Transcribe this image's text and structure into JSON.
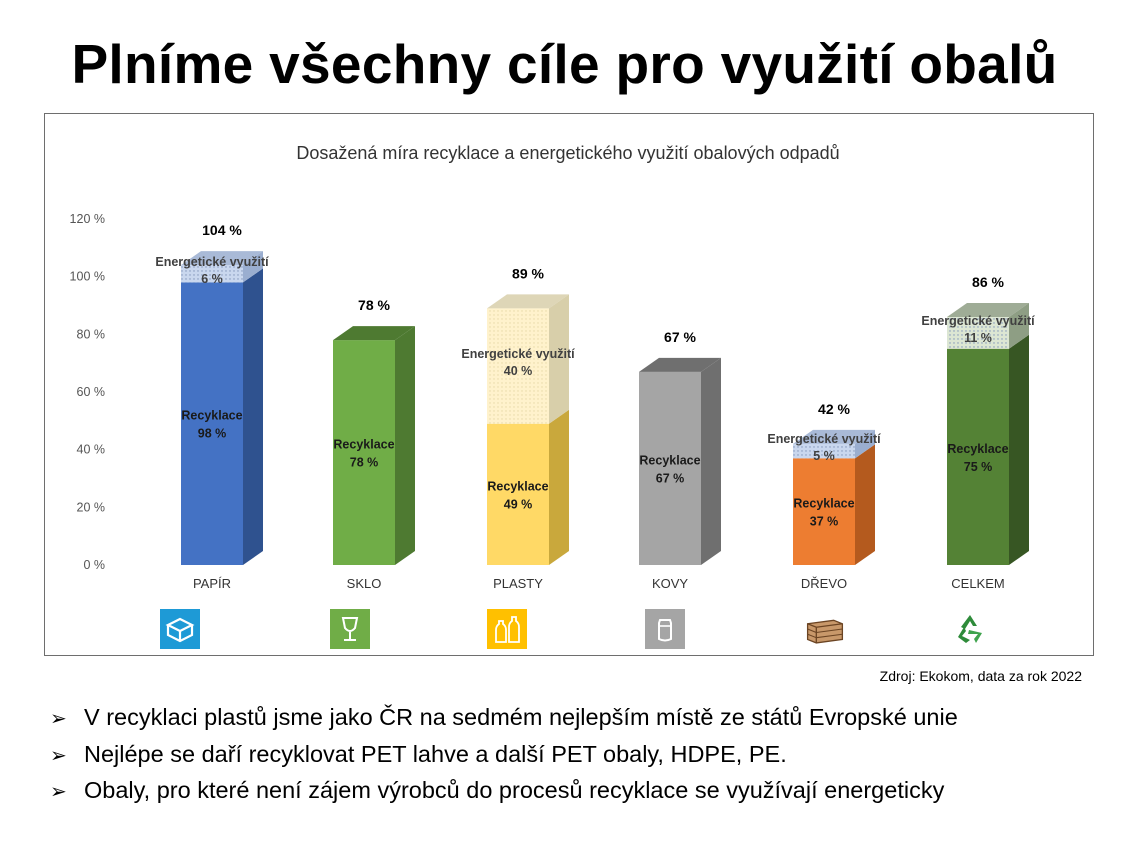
{
  "slide": {
    "title": "Plníme všechny cíle pro využití obalů",
    "source": "Zdroj: Ekokom, data za rok 2022",
    "bullet_marker": "➢",
    "bullets": [
      "V recyklaci plastů jsme jako ČR na sedmém nejlepším místě ze států Evropské unie",
      "Nejlépe se daří recyklovat PET lahve a další PET obaly, HDPE, PE.",
      "Obaly, pro které není zájem výrobců do procesů recyklace se využívají energeticky"
    ]
  },
  "chart_data": {
    "type": "bar",
    "stacked": true,
    "title": "Dosažená míra recyklace a energetického využití obalových odpadů",
    "xlabel": "",
    "ylabel": "",
    "ylim": [
      0,
      120
    ],
    "yticks": [
      "0 %",
      "20 %",
      "40 %",
      "60 %",
      "80 %",
      "100 %",
      "120 %"
    ],
    "ytick_values": [
      0,
      20,
      40,
      60,
      80,
      100,
      120
    ],
    "categories": [
      "PAPÍR",
      "SKLO",
      "PLASTY",
      "KOVY",
      "DŘEVO",
      "CELKEM"
    ],
    "totals": [
      "104 %",
      "78 %",
      "89 %",
      "67 %",
      "42 %",
      "86 %"
    ],
    "series": [
      {
        "name": "Recyklace",
        "values": [
          98,
          78,
          49,
          67,
          37,
          75
        ],
        "labels": [
          "98 %",
          "78 %",
          "49 %",
          "67 %",
          "37 %",
          "75 %"
        ]
      },
      {
        "name": "Energetické využití",
        "values": [
          6,
          0,
          40,
          0,
          5,
          11
        ],
        "labels": [
          "6 %",
          "",
          "40 %",
          "",
          "5 %",
          "11 %"
        ]
      }
    ],
    "colors": {
      "recyklace": [
        "#4472C4",
        "#70AD47",
        "#FFD966",
        "#A5A5A5",
        "#ED7D31",
        "#548235"
      ],
      "recyklace_side": [
        "#2F528F",
        "#4E7A31",
        "#C9A83C",
        "#6F6F6F",
        "#B45A1E",
        "#375623"
      ],
      "energeticke": [
        "#C9D7EE",
        "#FFFFFF",
        "#FFF2CC",
        "#FFFFFF",
        "#C9D7EE",
        "#DCE6D3"
      ],
      "energeticke_side": [
        "#9AAED0",
        "#FFFFFF",
        "#D8CFAA",
        "#FFFFFF",
        "#9AAED0",
        "#8E9E84"
      ]
    },
    "grid": false,
    "legend": "none",
    "icons": [
      "box-icon",
      "glass-icon",
      "bottles-icon",
      "can-icon",
      "crate-icon",
      "recycle-icon"
    ],
    "icon_colors": [
      "#1E9AD6",
      "#70AD47",
      "#FFC000",
      "#A5A5A5",
      "#8B5A2B",
      "#2E8B3A"
    ]
  }
}
